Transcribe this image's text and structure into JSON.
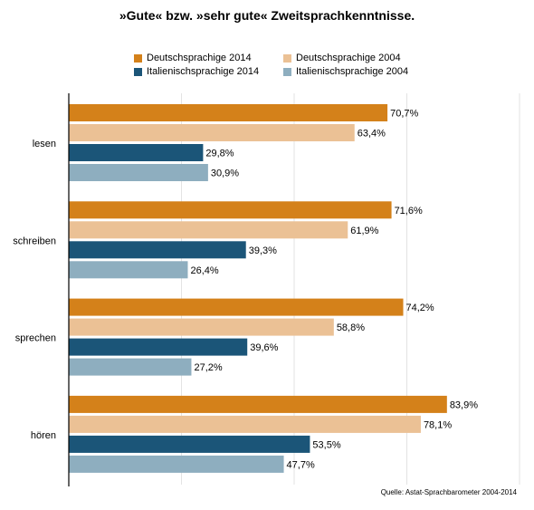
{
  "chart_data": {
    "type": "bar",
    "orientation": "horizontal",
    "title": "»Gute« bzw. »sehr gute« Zweitsprachkenntnisse.",
    "categories": [
      "lesen",
      "schreiben",
      "sprechen",
      "hören"
    ],
    "series": [
      {
        "name": "Deutschsprachige 2014",
        "color": "#d4811a",
        "values": [
          70.7,
          71.6,
          74.2,
          83.9
        ]
      },
      {
        "name": "Deutschsprachige 2004",
        "color": "#ebc195",
        "values": [
          63.4,
          61.9,
          58.8,
          78.1
        ]
      },
      {
        "name": "Italienischsprachige 2014",
        "color": "#1b5578",
        "values": [
          29.8,
          39.3,
          39.6,
          53.5
        ]
      },
      {
        "name": "Italienischsprachige 2004",
        "color": "#8eaebf",
        "values": [
          30.9,
          26.4,
          27.2,
          47.7
        ]
      }
    ],
    "value_labels": [
      [
        "70,7%",
        "71,6%",
        "74,2%",
        "83,9%"
      ],
      [
        "63,4%",
        "61,9%",
        "58,8%",
        "78,1%"
      ],
      [
        "29,8%",
        "39,3%",
        "39,6%",
        "53,5%"
      ],
      [
        "30,9%",
        "26,4%",
        "27,2%",
        "47,7%"
      ]
    ],
    "xlim": [
      0,
      100
    ],
    "grid": true,
    "legend_position": "top"
  },
  "source": "Quelle: Astat-Sprachbarometer 2004-2014"
}
